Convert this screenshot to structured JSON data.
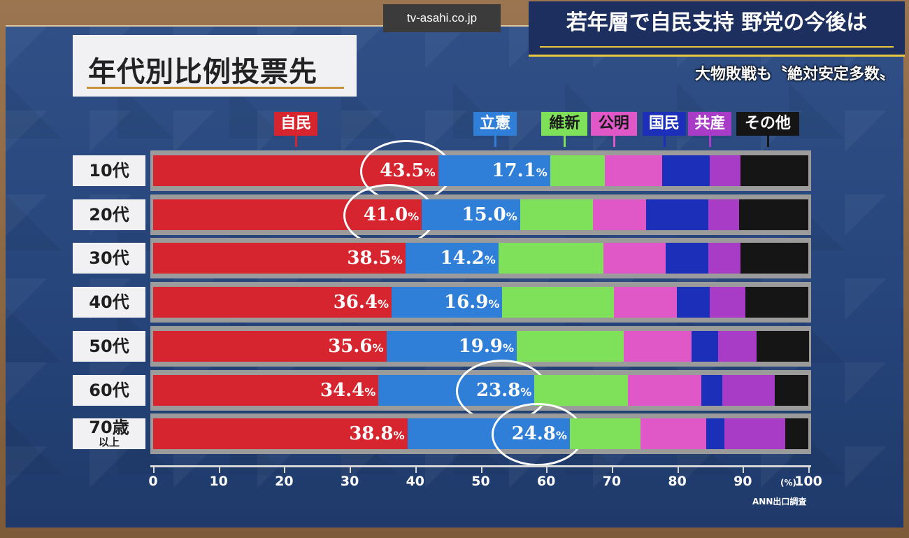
{
  "site": "tv-asahi.co.jp",
  "headline": "若年層で自民支持 野党の今後は",
  "subheadline": "大物敗戦も〝絶対安定多数〟",
  "chart_data": {
    "type": "bar",
    "orientation": "horizontal-stacked",
    "title": "年代別比例投票先",
    "xlim": [
      0,
      100
    ],
    "xticks": [
      "0",
      "10",
      "20",
      "30",
      "40",
      "50",
      "60",
      "70",
      "80",
      "90",
      "100"
    ],
    "unit_label": "(%)",
    "source": "ANN出口調査",
    "categories": [
      "10代",
      "20代",
      "30代",
      "40代",
      "50代",
      "60代",
      "70歳"
    ],
    "category_sub": [
      "",
      "",
      "",
      "",
      "",
      "",
      "以上"
    ],
    "series": [
      {
        "name": "自民",
        "color": "#d6252f",
        "values": [
          43.5,
          41.0,
          38.5,
          36.4,
          35.6,
          34.4,
          38.8
        ],
        "labels": [
          "43.5",
          "41.0",
          "38.5",
          "36.4",
          "35.6",
          "34.4",
          "38.8"
        ]
      },
      {
        "name": "立憲",
        "color": "#2f7fd9",
        "values": [
          17.1,
          15.0,
          14.2,
          16.9,
          19.9,
          23.8,
          24.8
        ],
        "labels": [
          "17.1",
          "15.0",
          "14.2",
          "16.9",
          "19.9",
          "23.8",
          "24.8"
        ]
      },
      {
        "name": "維新",
        "color": "#7fe05a",
        "values": [
          8.3,
          11.1,
          16.0,
          17.0,
          16.3,
          14.3,
          10.8
        ]
      },
      {
        "name": "公明",
        "color": "#e057c8",
        "values": [
          8.8,
          8.1,
          9.5,
          9.6,
          10.4,
          11.2,
          10.0
        ]
      },
      {
        "name": "国民",
        "color": "#1c2fb8",
        "values": [
          7.2,
          9.5,
          6.5,
          5.0,
          4.0,
          3.2,
          2.8
        ]
      },
      {
        "name": "共産",
        "color": "#a83cc6",
        "values": [
          4.8,
          4.7,
          5.0,
          5.5,
          5.9,
          8.0,
          9.3
        ]
      },
      {
        "name": "その他",
        "color": "#151515",
        "values": [
          10.3,
          10.6,
          10.3,
          9.6,
          8.0,
          5.1,
          3.5
        ]
      }
    ],
    "highlighted": [
      {
        "category": "10代",
        "series": "自民"
      },
      {
        "category": "20代",
        "series": "自民"
      },
      {
        "category": "60代",
        "series": "立憲"
      },
      {
        "category": "70歳",
        "series": "立憲"
      }
    ],
    "percent_sign": "%",
    "legend_text_colors": [
      "#ffffff",
      "#ffffff",
      "#1a1a1a",
      "#1a1a1a",
      "#ffffff",
      "#ffffff",
      "#ffffff"
    ]
  }
}
